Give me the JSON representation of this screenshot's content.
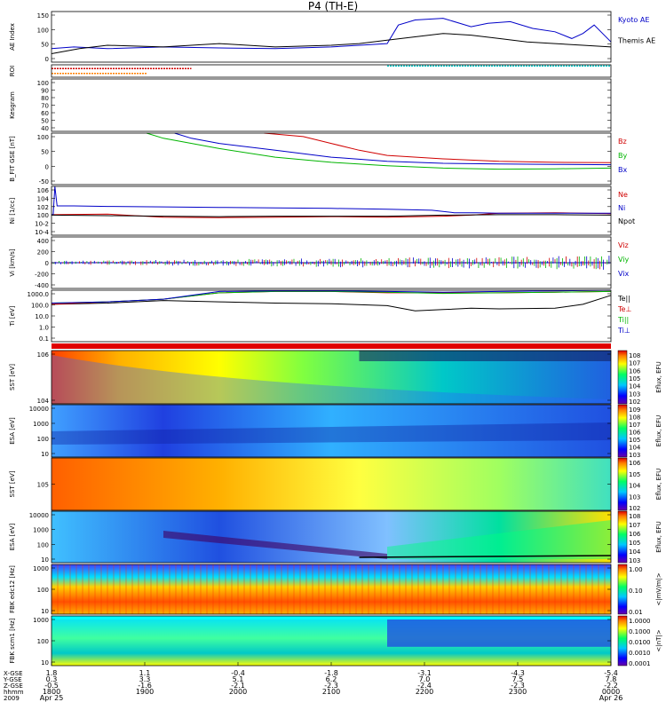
{
  "title": "P4 (TH-E)",
  "colors": {
    "red": "#d00000",
    "green": "#00b400",
    "blue": "#0000c8",
    "black": "#000000",
    "cyan": "#00c8c8",
    "orange": "#ff8000"
  },
  "chart_data": [
    {
      "type": "line",
      "panel": "ae",
      "ylabel": "AE Index",
      "yticks": [
        "150",
        "100",
        "50",
        "0"
      ],
      "ylim": [
        0,
        150
      ],
      "series": [
        {
          "name": "Kyoto AE",
          "color": "blue",
          "x": [
            0,
            0.04,
            0.1,
            0.2,
            0.3,
            0.4,
            0.5,
            0.55,
            0.6,
            0.62,
            0.65,
            0.7,
            0.75,
            0.78,
            0.82,
            0.86,
            0.9,
            0.93,
            0.95,
            0.97,
            1.0
          ],
          "y": [
            40,
            45,
            40,
            45,
            42,
            40,
            45,
            50,
            55,
            110,
            125,
            130,
            105,
            115,
            120,
            100,
            90,
            70,
            85,
            110,
            60
          ]
        },
        {
          "name": "Themis AE",
          "color": "black",
          "x": [
            0,
            0.05,
            0.1,
            0.2,
            0.3,
            0.4,
            0.5,
            0.55,
            0.6,
            0.65,
            0.7,
            0.75,
            0.8,
            0.85,
            0.9,
            0.95,
            1.0
          ],
          "y": [
            25,
            40,
            50,
            45,
            55,
            45,
            50,
            55,
            65,
            75,
            85,
            80,
            70,
            60,
            55,
            50,
            45
          ]
        }
      ]
    },
    {
      "type": "line",
      "panel": "roi",
      "ylabel": "ROI",
      "series": [
        {
          "name": "",
          "color": "red",
          "x": [
            0,
            0.25
          ],
          "y": [
            0.7,
            0.7
          ]
        },
        {
          "name": "",
          "color": "orange",
          "x": [
            0,
            0.17
          ],
          "y": [
            0.3,
            0.3
          ]
        },
        {
          "name": "",
          "color": "cyan",
          "x": [
            0.6,
            1.0
          ],
          "y": [
            0.9,
            0.9
          ]
        }
      ]
    },
    {
      "type": "line",
      "panel": "kgram",
      "ylabel": "Kesgram",
      "yticks": [
        "100",
        "90",
        "80",
        "70",
        "60",
        "50",
        "40"
      ],
      "series": []
    },
    {
      "type": "line",
      "panel": "bfit",
      "ylabel": "B_FIT GSE [nT]",
      "yticks": [
        "100",
        "50",
        "0",
        "-50"
      ],
      "ylim": [
        -50,
        100
      ],
      "series": [
        {
          "name": "Bz",
          "color": "red",
          "x": [
            0.38,
            0.45,
            0.5,
            0.55,
            0.6,
            0.7,
            0.8,
            0.9,
            1.0
          ],
          "y": [
            100,
            90,
            70,
            50,
            35,
            25,
            18,
            15,
            14
          ]
        },
        {
          "name": "By",
          "color": "green",
          "x": [
            0.17,
            0.2,
            0.3,
            0.4,
            0.5,
            0.6,
            0.7,
            0.8,
            0.9,
            1.0
          ],
          "y": [
            100,
            85,
            55,
            30,
            15,
            5,
            -2,
            -5,
            -4,
            -2
          ]
        },
        {
          "name": "Bx",
          "color": "blue",
          "x": [
            0.22,
            0.25,
            0.3,
            0.4,
            0.5,
            0.6,
            0.7,
            0.8,
            0.9,
            1.0
          ],
          "y": [
            100,
            85,
            70,
            50,
            30,
            18,
            12,
            10,
            9,
            8
          ]
        }
      ]
    },
    {
      "type": "line",
      "panel": "ni",
      "ylabel": "Ni [1/cc]",
      "yticks": [
        "10^6",
        "10^4",
        "10^2",
        "10^0",
        "10^-2",
        "10^-4"
      ],
      "ylim": [
        -4,
        6
      ],
      "log": true,
      "series": [
        {
          "name": "Ne",
          "color": "red",
          "x": [
            0,
            0.1,
            0.2,
            0.3,
            0.4,
            0.5,
            0.6,
            0.7,
            0.75,
            0.8,
            0.9,
            1.0
          ],
          "y": [
            0.2,
            0.3,
            -0.3,
            -0.4,
            -0.3,
            -0.2,
            -0.3,
            -0.1,
            0.1,
            0.5,
            0.6,
            0.4
          ]
        },
        {
          "name": "Ni",
          "color": "blue",
          "x": [
            0,
            0.003,
            0.006,
            0.01,
            0.02,
            0.04,
            0.1,
            0.2,
            0.3,
            0.4,
            0.5,
            0.6,
            0.68,
            0.72,
            0.76,
            0.8,
            0.9,
            1.0
          ],
          "y": [
            0.2,
            0.2,
            6,
            2,
            2,
            2,
            1.9,
            1.8,
            1.7,
            1.6,
            1.5,
            1.3,
            1.1,
            0.6,
            0.6,
            0.5,
            0.5,
            0.5
          ]
        },
        {
          "name": "Npot",
          "color": "black",
          "x": [
            0,
            0.1,
            0.2,
            0.3,
            0.4,
            0.5,
            0.6,
            0.7,
            0.8,
            0.9,
            1.0
          ],
          "y": [
            0.1,
            0.0,
            -0.1,
            -0.2,
            -0.1,
            -0.1,
            -0.1,
            0.1,
            0.2,
            0.2,
            0.1
          ]
        }
      ]
    },
    {
      "type": "line",
      "panel": "vi",
      "ylabel": "Vi [km/s]",
      "yticks": [
        "400",
        "200",
        "0",
        "-200",
        "-400"
      ],
      "ylim": [
        -400,
        400
      ],
      "series": [
        {
          "name": "Viz",
          "color": "red",
          "x": [
            0,
            1
          ],
          "y": [
            0,
            0
          ]
        },
        {
          "name": "Viy",
          "color": "green",
          "x": [
            0,
            1
          ],
          "y": [
            0,
            0
          ]
        },
        {
          "name": "Vix",
          "color": "blue",
          "x": [
            0,
            1
          ],
          "y": [
            0,
            0
          ]
        }
      ]
    },
    {
      "type": "line",
      "panel": "ti",
      "ylabel": "Ti [eV]",
      "yticks": [
        "1000.0",
        "100.0",
        "10.0",
        "1.0",
        "0.1"
      ],
      "ylim": [
        -1,
        3
      ],
      "log": true,
      "series": [
        {
          "name": "Te||",
          "color": "black",
          "x": [
            0,
            0.1,
            0.2,
            0.3,
            0.4,
            0.5,
            0.6,
            0.65,
            0.7,
            0.75,
            0.8,
            0.9,
            0.95,
            1.0
          ],
          "y": [
            1.9,
            2.0,
            2.2,
            2.1,
            2.0,
            1.95,
            1.8,
            1.4,
            1.5,
            1.6,
            1.55,
            1.6,
            1.9,
            2.6
          ]
        },
        {
          "name": "Te⊥",
          "color": "red",
          "x": [
            0,
            0.1,
            0.2,
            0.3,
            0.4,
            0.5,
            0.6,
            0.7,
            0.8,
            0.9,
            1.0
          ],
          "y": [
            1.9,
            2.1,
            2.3,
            2.8,
            2.9,
            2.9,
            2.8,
            2.8,
            2.8,
            2.85,
            2.9
          ]
        },
        {
          "name": "Ti||",
          "color": "green",
          "x": [
            0,
            0.1,
            0.2,
            0.3,
            0.4,
            0.5,
            0.6,
            0.7,
            0.8,
            0.9,
            1.0
          ],
          "y": [
            2.0,
            2.1,
            2.3,
            2.8,
            2.9,
            2.9,
            2.85,
            2.75,
            2.8,
            2.85,
            2.9
          ]
        },
        {
          "name": "Ti⊥",
          "color": "blue",
          "x": [
            0,
            0.1,
            0.2,
            0.3,
            0.4,
            0.5,
            0.6,
            0.7,
            0.8,
            0.9,
            1.0
          ],
          "y": [
            2.0,
            2.1,
            2.3,
            2.9,
            2.95,
            2.95,
            2.9,
            2.85,
            2.9,
            2.95,
            3.0
          ]
        }
      ]
    },
    {
      "type": "heatmap",
      "panel": "sst_e",
      "ylabel": "SST [eV]",
      "yticks": [
        "10^6",
        "10^4"
      ],
      "cbar": [
        "10^8",
        "10^7",
        "10^6",
        "10^5",
        "10^4",
        "10^3",
        "10^2"
      ],
      "cbar_label": "Eflux, EFU"
    },
    {
      "type": "heatmap",
      "panel": "esa_e",
      "ylabel": "ESA [eV]",
      "yticks": [
        "10000",
        "1000",
        "100",
        "10"
      ],
      "cbar": [
        "10^9",
        "10^8",
        "10^7",
        "10^6",
        "10^5",
        "10^4",
        "10^3"
      ],
      "cbar_label": "Eflux, EFU"
    },
    {
      "type": "heatmap",
      "panel": "sst_i",
      "ylabel": "SST [eV]",
      "yticks": [
        "10^5"
      ],
      "cbar": [
        "10^6",
        "10^5",
        "10^4",
        "10^3",
        "10^2"
      ],
      "cbar_label": "Eflux, EFU"
    },
    {
      "type": "heatmap",
      "panel": "esa_i",
      "ylabel": "ESA [eV]",
      "yticks": [
        "10000",
        "1000",
        "100",
        "10"
      ],
      "cbar": [
        "10^8",
        "10^7",
        "10^6",
        "10^5",
        "10^4",
        "10^3"
      ],
      "cbar_label": "Eflux, EFU"
    },
    {
      "type": "heatmap",
      "panel": "fbk_e",
      "ylabel": "FBK edc12 [Hz]",
      "yticks": [
        "1000",
        "100",
        "10"
      ],
      "cbar": [
        "1.00",
        "0.10",
        "0.01"
      ],
      "cbar_label": "<|mV/m|>"
    },
    {
      "type": "heatmap",
      "panel": "fbk_b",
      "ylabel": "FBK scm1 [Hz]",
      "yticks": [
        "1000",
        "100",
        "10"
      ],
      "cbar": [
        "1.0000",
        "0.1000",
        "0.0100",
        "0.0010",
        "0.0001"
      ],
      "cbar_label": "<|nT|>"
    }
  ],
  "xaxis": {
    "row_labels": [
      "X-GSE",
      "Y-GSE",
      "Z-GSE",
      "hhmm",
      "2009"
    ],
    "ticks": [
      {
        "x": "1.8",
        "y": "0.3",
        "z": "-0.5",
        "t": "1800",
        "d": "Apr 25"
      },
      {
        "x": "1.1",
        "y": "3.3",
        "z": "-1.6",
        "t": "1900",
        "d": ""
      },
      {
        "x": "-0.4",
        "y": "5.1",
        "z": "-2.1",
        "t": "2000",
        "d": ""
      },
      {
        "x": "-1.8",
        "y": "6.2",
        "z": "-2.3",
        "t": "2100",
        "d": ""
      },
      {
        "x": "-3.1",
        "y": "7.0",
        "z": "-2.4",
        "t": "2200",
        "d": ""
      },
      {
        "x": "-4.3",
        "y": "7.5",
        "z": "-2.3",
        "t": "2300",
        "d": ""
      },
      {
        "x": "-5.4",
        "y": "7.8",
        "z": "-2.2",
        "t": "0000",
        "d": "Apr 26"
      }
    ]
  }
}
